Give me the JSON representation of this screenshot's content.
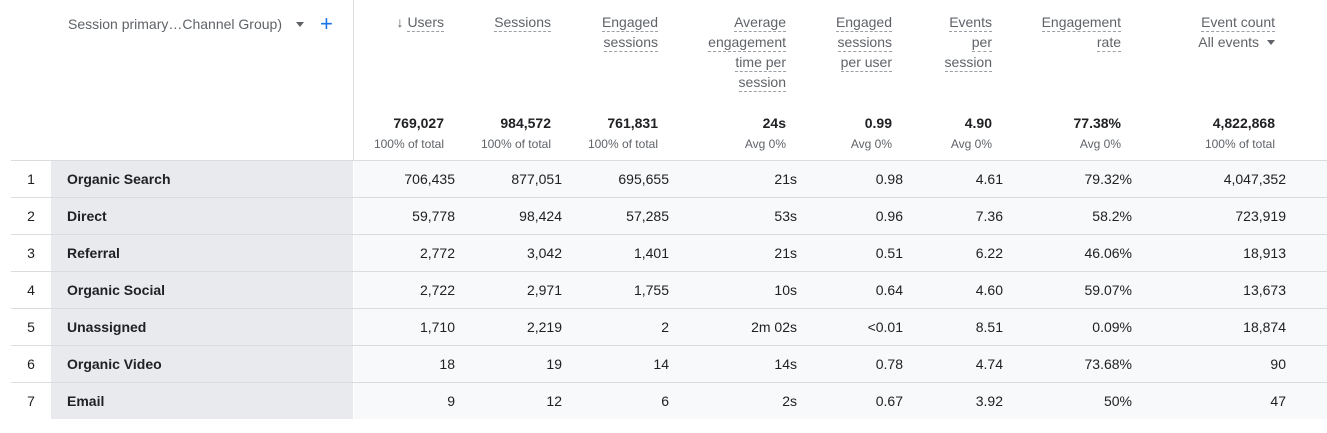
{
  "dimension": {
    "label": "Session primary…Channel Group)"
  },
  "columns": [
    {
      "key": "users",
      "lines": [
        "Users"
      ],
      "sorted": true,
      "sort_icon": "arrow-down-icon",
      "total": "769,027",
      "sub": "100% of total"
    },
    {
      "key": "sessions",
      "lines": [
        "Sessions"
      ],
      "total": "984,572",
      "sub": "100% of total"
    },
    {
      "key": "engaged_sessions",
      "lines": [
        "Engaged",
        "sessions"
      ],
      "total": "761,831",
      "sub": "100% of total"
    },
    {
      "key": "avg_engagement_time",
      "lines": [
        "Average",
        "engagement",
        "time per",
        "session"
      ],
      "total": "24s",
      "sub": "Avg 0%"
    },
    {
      "key": "engaged_sessions_per_user",
      "lines": [
        "Engaged",
        "sessions",
        "per user"
      ],
      "total": "0.99",
      "sub": "Avg 0%"
    },
    {
      "key": "events_per_session",
      "lines": [
        "Events",
        "per",
        "session"
      ],
      "total": "4.90",
      "sub": "Avg 0%"
    },
    {
      "key": "engagement_rate",
      "lines": [
        "Engagement",
        "rate"
      ],
      "total": "77.38%",
      "sub": "Avg 0%"
    },
    {
      "key": "event_count",
      "lines": [
        "Event count"
      ],
      "selector": "All events",
      "total": "4,822,868",
      "sub": "100% of total"
    }
  ],
  "rows": [
    {
      "rank": "1",
      "name": "Organic Search",
      "values": [
        "706,435",
        "877,051",
        "695,655",
        "21s",
        "0.98",
        "4.61",
        "79.32%",
        "4,047,352"
      ]
    },
    {
      "rank": "2",
      "name": "Direct",
      "values": [
        "59,778",
        "98,424",
        "57,285",
        "53s",
        "0.96",
        "7.36",
        "58.2%",
        "723,919"
      ]
    },
    {
      "rank": "3",
      "name": "Referral",
      "values": [
        "2,772",
        "3,042",
        "1,401",
        "21s",
        "0.51",
        "6.22",
        "46.06%",
        "18,913"
      ]
    },
    {
      "rank": "4",
      "name": "Organic Social",
      "values": [
        "2,722",
        "2,971",
        "1,755",
        "10s",
        "0.64",
        "4.60",
        "59.07%",
        "13,673"
      ]
    },
    {
      "rank": "5",
      "name": "Unassigned",
      "values": [
        "1,710",
        "2,219",
        "2",
        "2m 02s",
        "<0.01",
        "8.51",
        "0.09%",
        "18,874"
      ]
    },
    {
      "rank": "6",
      "name": "Organic Video",
      "values": [
        "18",
        "19",
        "14",
        "14s",
        "0.78",
        "4.74",
        "73.68%",
        "90"
      ]
    },
    {
      "rank": "7",
      "name": "Email",
      "values": [
        "9",
        "12",
        "6",
        "2s",
        "0.67",
        "3.92",
        "50%",
        "47"
      ]
    }
  ],
  "colors": {
    "accent": "#1a73e8",
    "row_bg": "#f8f9fa",
    "name_bg": "#e8eaed"
  }
}
